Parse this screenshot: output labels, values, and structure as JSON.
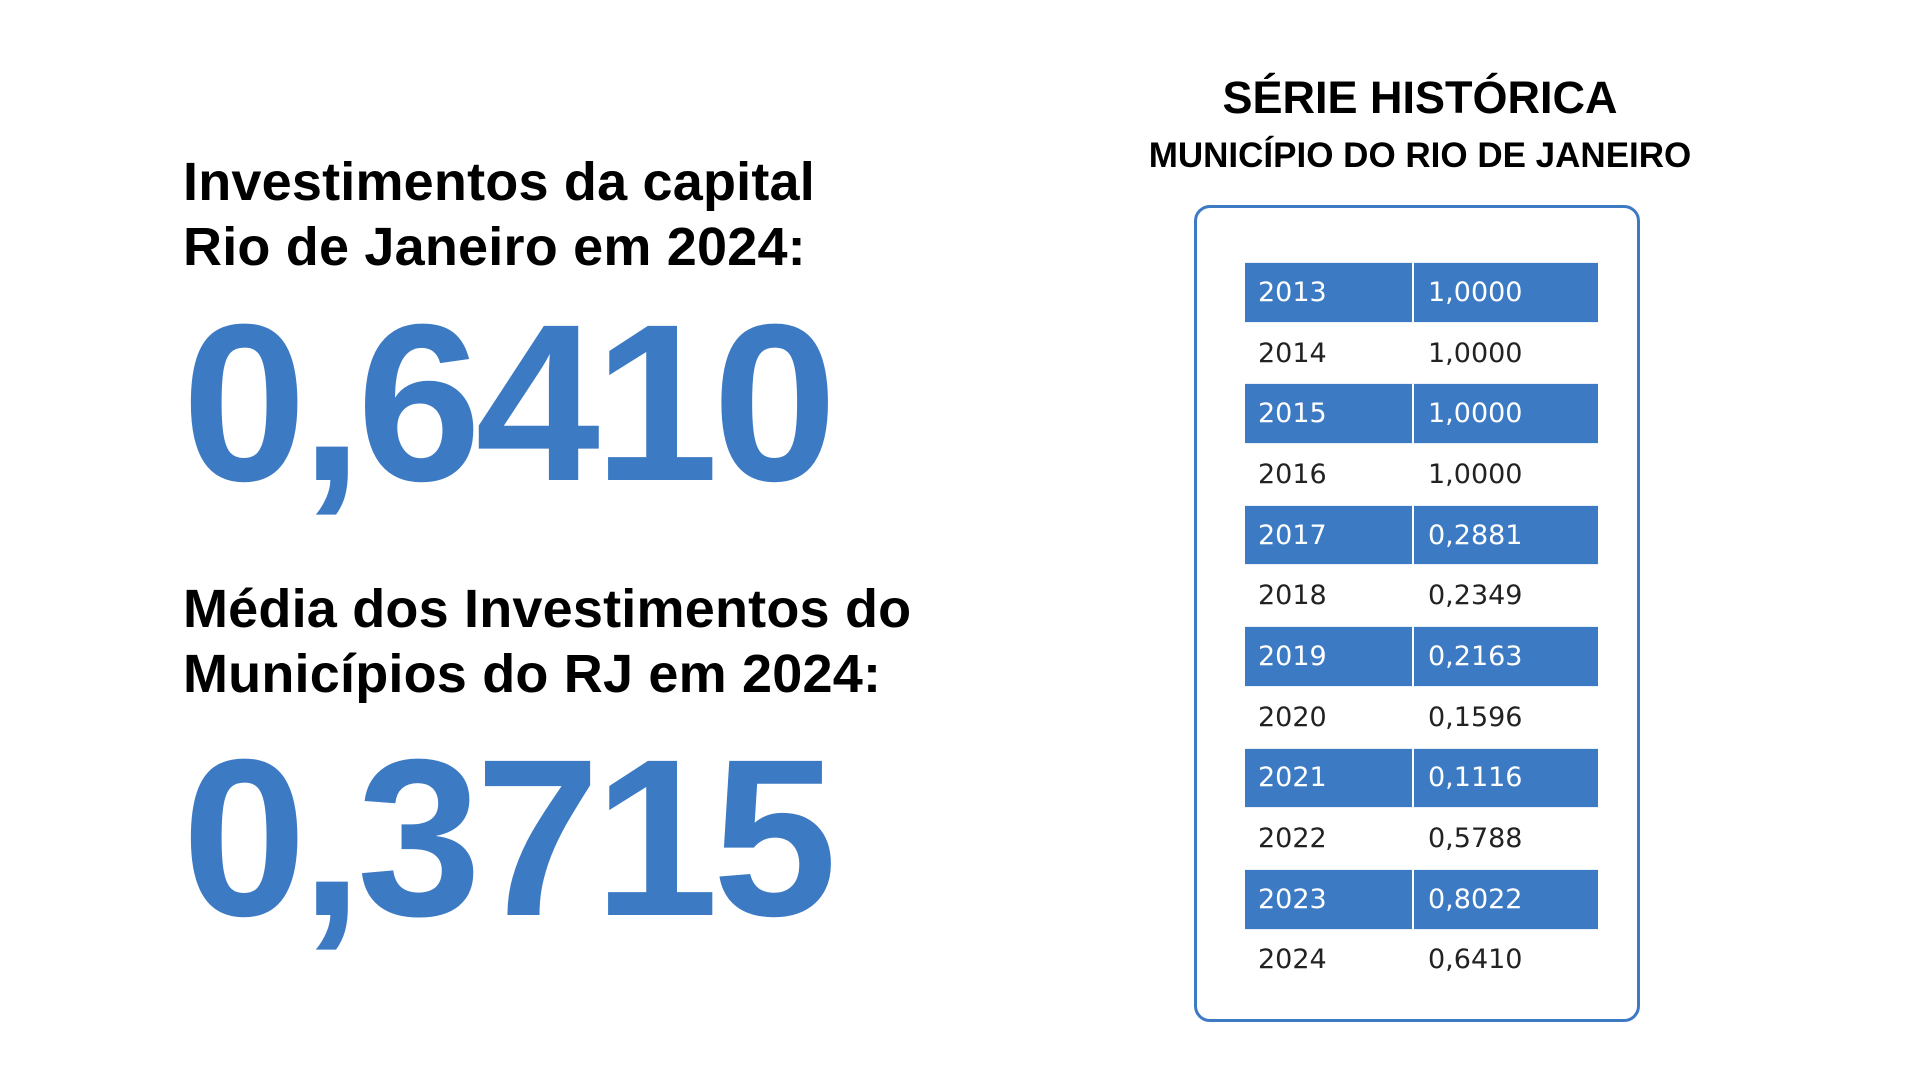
{
  "left_panel": {
    "capital": {
      "label_lines": [
        "Investimentos da capital",
        "Rio de Janeiro em 2024:"
      ],
      "value": "0,6410"
    },
    "media": {
      "label_lines": [
        "Média dos Investimentos do",
        "Municípios do RJ em 2024:"
      ],
      "value": "0,3715"
    }
  },
  "series": {
    "title": "SÉRIE HISTÓRICA",
    "subtitle": "MUNICÍPIO DO RIO DE JANEIRO",
    "rows": [
      {
        "year": "2013",
        "value": "1,0000",
        "highlight": true
      },
      {
        "year": "2014",
        "value": "1,0000",
        "highlight": false
      },
      {
        "year": "2015",
        "value": "1,0000",
        "highlight": true
      },
      {
        "year": "2016",
        "value": "1,0000",
        "highlight": false
      },
      {
        "year": "2017",
        "value": "0,2881",
        "highlight": true
      },
      {
        "year": "2018",
        "value": "0,2349",
        "highlight": false
      },
      {
        "year": "2019",
        "value": "0,2163",
        "highlight": true
      },
      {
        "year": "2020",
        "value": "0,1596",
        "highlight": false
      },
      {
        "year": "2021",
        "value": "0,1116",
        "highlight": true
      },
      {
        "year": "2022",
        "value": "0,5788",
        "highlight": false
      },
      {
        "year": "2023",
        "value": "0,8022",
        "highlight": true
      },
      {
        "year": "2024",
        "value": "0,6410",
        "highlight": false
      }
    ]
  },
  "colors": {
    "accent": "#3C7AC4",
    "text": "#000000",
    "table_text": "#222222",
    "background": "#FFFFFF"
  }
}
